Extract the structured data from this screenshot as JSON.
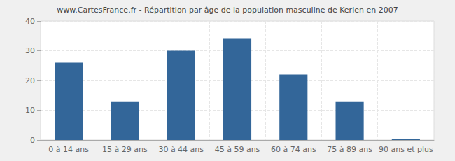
{
  "chart_data": {
    "type": "bar",
    "title": "www.CartesFrance.fr - Répartition par âge de la population masculine de Kerien en 2007",
    "categories": [
      "0 à 14 ans",
      "15 à 29 ans",
      "30 à 44 ans",
      "45 à 59 ans",
      "60 à 74 ans",
      "75 à 89 ans",
      "90 ans et plus"
    ],
    "values": [
      26,
      13,
      30,
      34,
      22,
      13,
      0
    ],
    "color": "#336699",
    "ylim": [
      0,
      40
    ],
    "yticks": [
      0,
      10,
      20,
      30,
      40
    ],
    "grid": true
  }
}
